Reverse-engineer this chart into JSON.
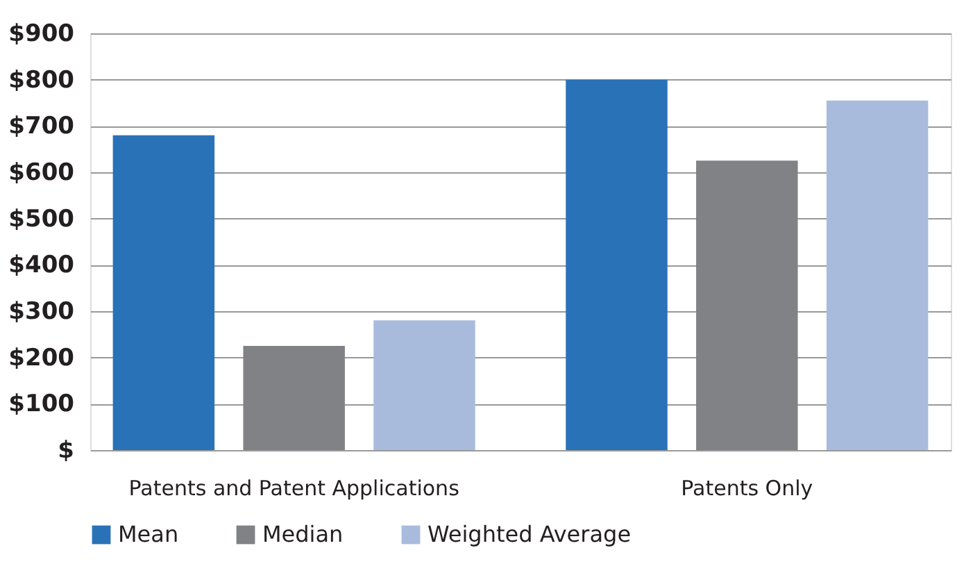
{
  "chart_data": {
    "type": "bar",
    "categories": [
      "Patents and Patent Applications",
      "Patents Only"
    ],
    "series": [
      {
        "name": "Mean",
        "color": "#2a72b8",
        "values": [
          680,
          800
        ]
      },
      {
        "name": "Median",
        "color": "#808285",
        "values": [
          225,
          625
        ]
      },
      {
        "name": "Weighted Average",
        "color": "#a9bbdd",
        "values": [
          280,
          755
        ]
      }
    ],
    "ylim": [
      0,
      900
    ],
    "yticks": [
      {
        "value": 0,
        "label": "$"
      },
      {
        "value": 100,
        "label": "$100"
      },
      {
        "value": 200,
        "label": "$200"
      },
      {
        "value": 300,
        "label": "$300"
      },
      {
        "value": 400,
        "label": "$400"
      },
      {
        "value": 500,
        "label": "$500"
      },
      {
        "value": 600,
        "label": "$600"
      },
      {
        "value": 700,
        "label": "$700"
      },
      {
        "value": 800,
        "label": "$800"
      },
      {
        "value": 900,
        "label": "$900"
      }
    ],
    "grid": "y",
    "legend": "bottom"
  }
}
